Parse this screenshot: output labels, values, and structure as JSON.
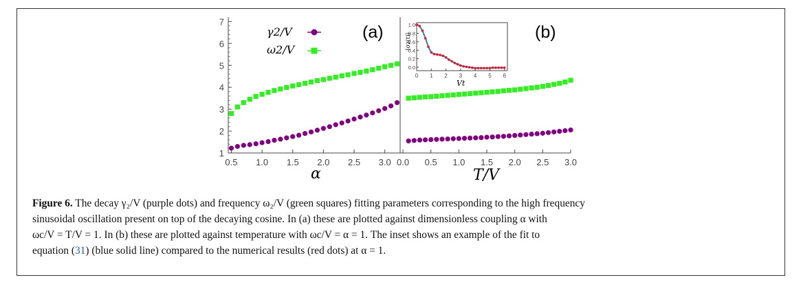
{
  "colors": {
    "gamma": "#800080",
    "omega": "#33ee22",
    "fit_line": "#3a78c4",
    "numeric_dots": "#d6202a"
  },
  "chart_data": [
    {
      "type": "scatter",
      "panel_label": "(a)",
      "xlabel": "α",
      "ylabel": "",
      "xlim": [
        0.45,
        3.25
      ],
      "ylim": [
        1,
        7.2
      ],
      "x_ticks": [
        "0.5",
        "1.0",
        "1.5",
        "2.0",
        "2.5",
        "3.0"
      ],
      "y_ticks": [
        "1",
        "2",
        "3",
        "4",
        "5",
        "6",
        "7"
      ],
      "legend": {
        "placement": "top-left",
        "entries": [
          "γ2/V",
          "ω2/V"
        ]
      },
      "series": [
        {
          "name": "γ2/V",
          "marker": "circle",
          "color": "#800080",
          "x": [
            0.5,
            0.6,
            0.7,
            0.8,
            0.9,
            1.0,
            1.1,
            1.2,
            1.3,
            1.4,
            1.5,
            1.6,
            1.7,
            1.8,
            1.9,
            2.0,
            2.1,
            2.2,
            2.3,
            2.4,
            2.5,
            2.6,
            2.7,
            2.8,
            2.9,
            3.0,
            3.1,
            3.2
          ],
          "y": [
            1.22,
            1.3,
            1.35,
            1.38,
            1.42,
            1.47,
            1.52,
            1.58,
            1.63,
            1.69,
            1.75,
            1.81,
            1.89,
            1.96,
            2.04,
            2.12,
            2.2,
            2.29,
            2.37,
            2.46,
            2.55,
            2.64,
            2.73,
            2.83,
            2.93,
            3.03,
            3.15,
            3.3
          ]
        },
        {
          "name": "ω2/V",
          "marker": "square",
          "color": "#33ee22",
          "x": [
            0.5,
            0.6,
            0.7,
            0.8,
            0.9,
            1.0,
            1.1,
            1.2,
            1.3,
            1.4,
            1.5,
            1.6,
            1.7,
            1.8,
            1.9,
            2.0,
            2.1,
            2.2,
            2.3,
            2.4,
            2.5,
            2.6,
            2.7,
            2.8,
            2.9,
            3.0,
            3.1,
            3.2
          ],
          "y": [
            2.8,
            3.1,
            3.3,
            3.45,
            3.58,
            3.68,
            3.77,
            3.85,
            3.92,
            3.99,
            4.06,
            4.12,
            4.18,
            4.24,
            4.3,
            4.35,
            4.41,
            4.46,
            4.52,
            4.57,
            4.63,
            4.68,
            4.74,
            4.8,
            4.87,
            4.94,
            5.0,
            5.07
          ]
        }
      ]
    },
    {
      "type": "scatter",
      "panel_label": "(b)",
      "xlabel": "T/V",
      "ylabel": "",
      "xlim": [
        -0.05,
        3.0
      ],
      "ylim": [
        1,
        7.2
      ],
      "x_ticks": [
        "0.0",
        "0.5",
        "1.0",
        "1.5",
        "2.0",
        "2.5",
        "3.0"
      ],
      "series": [
        {
          "name": "γ2/V",
          "marker": "circle",
          "color": "#800080",
          "x": [
            0.1,
            0.2,
            0.3,
            0.4,
            0.5,
            0.6,
            0.7,
            0.8,
            0.9,
            1.0,
            1.1,
            1.2,
            1.3,
            1.4,
            1.5,
            1.6,
            1.7,
            1.8,
            1.9,
            2.0,
            2.1,
            2.2,
            2.3,
            2.4,
            2.5,
            2.6,
            2.7,
            2.8,
            2.9,
            3.0
          ],
          "y": [
            1.55,
            1.57,
            1.59,
            1.6,
            1.61,
            1.62,
            1.63,
            1.64,
            1.65,
            1.66,
            1.67,
            1.68,
            1.69,
            1.7,
            1.72,
            1.73,
            1.75,
            1.76,
            1.78,
            1.8,
            1.82,
            1.84,
            1.86,
            1.88,
            1.9,
            1.93,
            1.96,
            1.99,
            2.02,
            2.05
          ]
        },
        {
          "name": "ω2/V",
          "marker": "square",
          "color": "#33ee22",
          "x": [
            0.1,
            0.2,
            0.3,
            0.4,
            0.5,
            0.6,
            0.7,
            0.8,
            0.9,
            1.0,
            1.1,
            1.2,
            1.3,
            1.4,
            1.5,
            1.6,
            1.7,
            1.8,
            1.9,
            2.0,
            2.1,
            2.2,
            2.3,
            2.4,
            2.5,
            2.6,
            2.7,
            2.8,
            2.9,
            3.0
          ],
          "y": [
            3.5,
            3.52,
            3.54,
            3.56,
            3.57,
            3.59,
            3.61,
            3.63,
            3.65,
            3.67,
            3.69,
            3.71,
            3.73,
            3.75,
            3.77,
            3.79,
            3.81,
            3.84,
            3.86,
            3.88,
            3.91,
            3.94,
            3.97,
            4.0,
            4.04,
            4.08,
            4.13,
            4.18,
            4.24,
            4.32
          ]
        }
      ]
    },
    {
      "type": "line",
      "panel_label": "inset",
      "xlabel": "Vt",
      "ylabel": "⟨σz(t)⟩",
      "xlim": [
        0,
        6.2
      ],
      "ylim": [
        -0.08,
        1.05
      ],
      "x_ticks": [
        "0",
        "1",
        "2",
        "3",
        "4",
        "5",
        "6"
      ],
      "y_ticks": [
        "0.0",
        "0.2",
        "0.4",
        "0.6",
        "0.8",
        "1.0"
      ],
      "series": [
        {
          "name": "",
          "style": "line",
          "color": "#3a78c4",
          "x": [
            0,
            0.2,
            0.4,
            0.6,
            0.8,
            1.0,
            1.2,
            1.4,
            1.6,
            1.8,
            2.0,
            2.2,
            2.4,
            2.6,
            2.8,
            3.0,
            3.2,
            3.4,
            3.6,
            3.8,
            4.0,
            4.2,
            4.4,
            4.6,
            4.8,
            5.0,
            5.2,
            5.4,
            5.6,
            5.8,
            6.0
          ],
          "y": [
            1.0,
            0.97,
            0.86,
            0.68,
            0.48,
            0.35,
            0.31,
            0.3,
            0.29,
            0.27,
            0.23,
            0.18,
            0.14,
            0.1,
            0.07,
            0.04,
            0.02,
            0.01,
            0.0,
            -0.01,
            -0.02,
            -0.02,
            -0.02,
            -0.02,
            -0.02,
            -0.02,
            -0.01,
            -0.01,
            -0.01,
            -0.01,
            -0.01
          ]
        },
        {
          "name": "",
          "style": "dots",
          "color": "#d6202a",
          "x": [
            0,
            0.2,
            0.4,
            0.6,
            0.8,
            1.0,
            1.2,
            1.4,
            1.6,
            1.8,
            2.0,
            2.2,
            2.4,
            2.6,
            2.8,
            3.0,
            3.2,
            3.4,
            3.6,
            3.8,
            4.0,
            4.2,
            4.4,
            4.6,
            4.8,
            5.0,
            5.2,
            5.4,
            5.6,
            5.8,
            6.0
          ],
          "y": [
            1.0,
            0.97,
            0.86,
            0.68,
            0.48,
            0.35,
            0.31,
            0.3,
            0.29,
            0.27,
            0.23,
            0.18,
            0.14,
            0.1,
            0.07,
            0.04,
            0.02,
            0.01,
            0.0,
            -0.01,
            -0.02,
            -0.02,
            -0.02,
            -0.02,
            -0.02,
            -0.02,
            -0.01,
            -0.01,
            -0.01,
            -0.01,
            -0.01
          ]
        }
      ]
    }
  ],
  "caption": {
    "label": "Figure 6.",
    "line1": " The decay γ₂/V (purple dots) and frequency ω₂/V (green squares) fitting parameters corresponding to the high frequency",
    "line2": "sinusoidal oscillation present on top of the decaying cosine. In (a) these are plotted against dimensionless coupling α with",
    "line3": "ωc/V = T/V = 1. In (b) these are plotted against temperature with ωc/V = α = 1. The inset shows an example of the fit to",
    "line4_pre": "equation (",
    "line4_ref": "31",
    "line4_post": ") (blue solid line) compared to the numerical results (red dots) at α = 1."
  }
}
